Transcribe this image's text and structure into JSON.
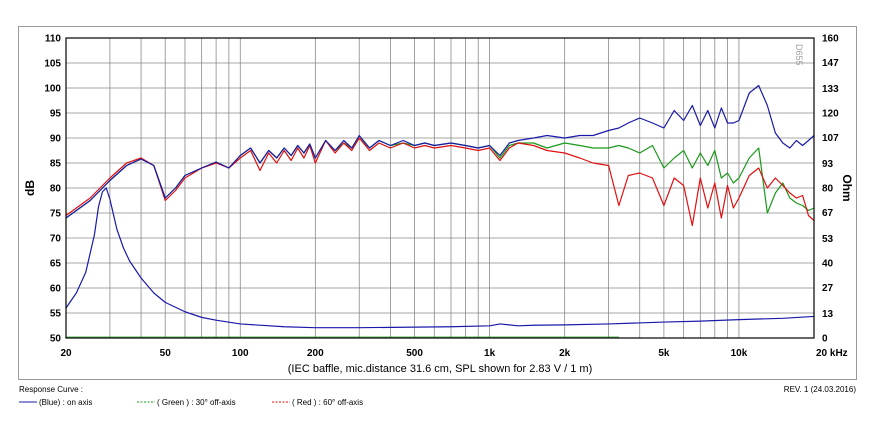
{
  "chart_data": {
    "type": "line",
    "title": "Response Curve :",
    "conditions": "(IEC baffle, mic.distance 31.6 cm, SPL shown for 2.83 V / 1 m)",
    "revision": "REV. 1 (24.03.2016)",
    "watermark": "D655",
    "xlabel": "Hz",
    "ylabel": "dB",
    "y2label": "Ohm",
    "xscale": "log",
    "xlim": [
      20,
      20000
    ],
    "ylim": [
      50,
      110
    ],
    "y2lim": [
      0,
      160
    ],
    "x_tick_labels": [
      {
        "value": 20,
        "label": "20"
      },
      {
        "value": 50,
        "label": "50"
      },
      {
        "value": 100,
        "label": "100"
      },
      {
        "value": 200,
        "label": "200"
      },
      {
        "value": 500,
        "label": "500"
      },
      {
        "value": 1000,
        "label": "1k"
      },
      {
        "value": 2000,
        "label": "2k"
      },
      {
        "value": 5000,
        "label": "5k"
      },
      {
        "value": 10000,
        "label": "10k"
      },
      {
        "value": 20000,
        "label": "20 kHz"
      }
    ],
    "y_ticks": [
      50,
      55,
      60,
      65,
      70,
      75,
      80,
      85,
      90,
      95,
      100,
      105,
      110
    ],
    "y2_ticks": [
      0,
      13,
      27,
      40,
      53,
      67,
      80,
      93,
      107,
      120,
      133,
      147,
      160
    ],
    "series": [
      {
        "name": "( Green ) : 30° off-axis",
        "color": "#1a9a1a",
        "x": [
          20,
          25,
          30,
          35,
          40,
          45,
          50,
          55,
          60,
          70,
          80,
          90,
          100,
          110,
          120,
          130,
          140,
          150,
          160,
          170,
          180,
          190,
          200,
          220,
          240,
          260,
          280,
          300,
          330,
          360,
          400,
          450,
          500,
          550,
          600,
          700,
          800,
          900,
          1000,
          1100,
          1200,
          1300,
          1500,
          1700,
          2000,
          2300,
          2600,
          3000,
          3300,
          3600,
          4000,
          4500,
          5000,
          5500,
          6000,
          6500,
          7000,
          7500,
          8000,
          8500,
          9000,
          9500,
          10000,
          11000,
          12000,
          13000,
          14000,
          15000,
          16000,
          17000,
          18000,
          19000,
          20000
        ],
        "values": [
          74.0,
          77.5,
          81.5,
          84.5,
          85.8,
          84.5,
          78.0,
          80.0,
          82.5,
          84.0,
          85.2,
          84.0,
          86.5,
          88.0,
          85.0,
          87.5,
          86.0,
          88.0,
          86.5,
          88.5,
          87.0,
          88.8,
          86.0,
          89.5,
          87.5,
          89.0,
          88.0,
          90.0,
          88.0,
          89.5,
          88.5,
          89.0,
          88.5,
          89.0,
          88.5,
          89.0,
          88.5,
          88.0,
          88.5,
          86.0,
          88.5,
          89.0,
          89.0,
          88.0,
          89.0,
          88.5,
          88.0,
          88.0,
          88.5,
          88.0,
          87.0,
          88.5,
          84.0,
          86.0,
          87.5,
          84.0,
          87.0,
          84.5,
          87.5,
          82.0,
          83.0,
          81.0,
          82.0,
          86.0,
          88.0,
          75.0,
          79.0,
          81.0,
          78.0,
          77.0,
          76.5,
          75.5,
          76.0
        ]
      },
      {
        "name": "( Red ) : 60° off-axis",
        "color": "#e01010",
        "x": [
          20,
          25,
          30,
          35,
          40,
          45,
          50,
          55,
          60,
          70,
          80,
          90,
          100,
          110,
          120,
          130,
          140,
          150,
          160,
          170,
          180,
          190,
          200,
          220,
          240,
          260,
          280,
          300,
          330,
          360,
          400,
          450,
          500,
          550,
          600,
          700,
          800,
          900,
          1000,
          1100,
          1200,
          1300,
          1500,
          1700,
          2000,
          2300,
          2600,
          3000,
          3300,
          3600,
          4000,
          4500,
          5000,
          5500,
          6000,
          6500,
          7000,
          7500,
          8000,
          8500,
          9000,
          9500,
          10000,
          11000,
          12000,
          13000,
          14000,
          15000,
          16000,
          17000,
          18000,
          19000,
          20000
        ],
        "values": [
          74.5,
          78.0,
          82.0,
          85.0,
          86.0,
          84.5,
          77.5,
          79.5,
          82.0,
          84.0,
          85.0,
          84.0,
          86.0,
          87.5,
          83.5,
          87.0,
          85.0,
          87.5,
          85.5,
          88.0,
          86.0,
          88.5,
          85.0,
          89.5,
          87.0,
          89.0,
          87.5,
          90.0,
          87.5,
          89.0,
          88.0,
          89.0,
          88.0,
          88.5,
          88.0,
          88.5,
          88.0,
          87.5,
          88.0,
          85.5,
          88.0,
          89.0,
          88.5,
          87.5,
          87.0,
          86.0,
          85.0,
          84.5,
          76.5,
          82.5,
          83.0,
          82.0,
          76.5,
          82.0,
          80.5,
          72.5,
          82.0,
          76.0,
          81.0,
          74.0,
          80.5,
          76.0,
          78.0,
          82.5,
          84.0,
          80.0,
          82.0,
          80.5,
          79.0,
          78.0,
          78.5,
          74.5,
          73.5
        ]
      },
      {
        "name": "(Blue)  : on axis",
        "color": "#1a1aaa",
        "x": [
          20,
          25,
          30,
          35,
          40,
          45,
          50,
          55,
          60,
          70,
          80,
          90,
          100,
          110,
          120,
          130,
          140,
          150,
          160,
          170,
          180,
          190,
          200,
          220,
          240,
          260,
          280,
          300,
          330,
          360,
          400,
          450,
          500,
          550,
          600,
          700,
          800,
          900,
          1000,
          1100,
          1200,
          1300,
          1500,
          1700,
          2000,
          2300,
          2600,
          3000,
          3300,
          3600,
          4000,
          4500,
          5000,
          5500,
          6000,
          6500,
          7000,
          7500,
          8000,
          8500,
          9000,
          9500,
          10000,
          11000,
          12000,
          13000,
          14000,
          15000,
          16000,
          17000,
          18000,
          19000,
          20000
        ],
        "values": [
          74.0,
          77.5,
          81.5,
          84.5,
          85.8,
          84.5,
          78.0,
          80.0,
          82.5,
          84.0,
          85.2,
          84.0,
          86.5,
          88.0,
          85.0,
          87.5,
          86.0,
          88.0,
          86.5,
          88.5,
          87.0,
          88.8,
          86.0,
          89.5,
          87.5,
          89.5,
          88.0,
          90.5,
          88.0,
          89.5,
          88.5,
          89.5,
          88.5,
          89.0,
          88.5,
          89.0,
          88.5,
          88.0,
          88.5,
          86.5,
          89.0,
          89.5,
          90.0,
          90.5,
          90.0,
          90.5,
          90.5,
          91.5,
          92.0,
          93.0,
          94.0,
          93.0,
          92.0,
          95.5,
          93.5,
          96.5,
          92.5,
          95.5,
          92.0,
          96.0,
          93.0,
          93.0,
          93.5,
          99.0,
          100.5,
          96.5,
          91.0,
          89.0,
          88.0,
          89.5,
          88.5,
          89.5,
          90.5
        ]
      },
      {
        "name": "Impedance (Ohm, right axis)",
        "color": "#1a1aaa",
        "x": [
          20,
          22,
          24,
          26,
          27,
          28,
          29,
          30,
          32,
          34,
          36,
          40,
          45,
          50,
          60,
          70,
          80,
          100,
          150,
          200,
          300,
          500,
          700,
          1000,
          1100,
          1200,
          1300,
          1500,
          2000,
          3000,
          5000,
          7000,
          10000,
          15000,
          20000
        ],
        "values": [
          16,
          24,
          35,
          55,
          70,
          78,
          80,
          74,
          58,
          48,
          41,
          32,
          24,
          19,
          14,
          11,
          9.5,
          7.5,
          6.0,
          5.5,
          5.5,
          5.8,
          6.0,
          6.5,
          7.5,
          7.0,
          6.5,
          6.8,
          7.0,
          7.5,
          8.5,
          9.0,
          9.8,
          10.5,
          11.5
        ]
      }
    ],
    "legend": [
      {
        "label": "(Blue)  : on axis",
        "color": "#1a1aaa",
        "style": "solid"
      },
      {
        "label": "( Green ) : 30° off-axis",
        "color": "#1a9a1a",
        "style": "dashed"
      },
      {
        "label": "( Red ) : 60° off-axis",
        "color": "#e01010",
        "style": "dashed"
      }
    ]
  }
}
